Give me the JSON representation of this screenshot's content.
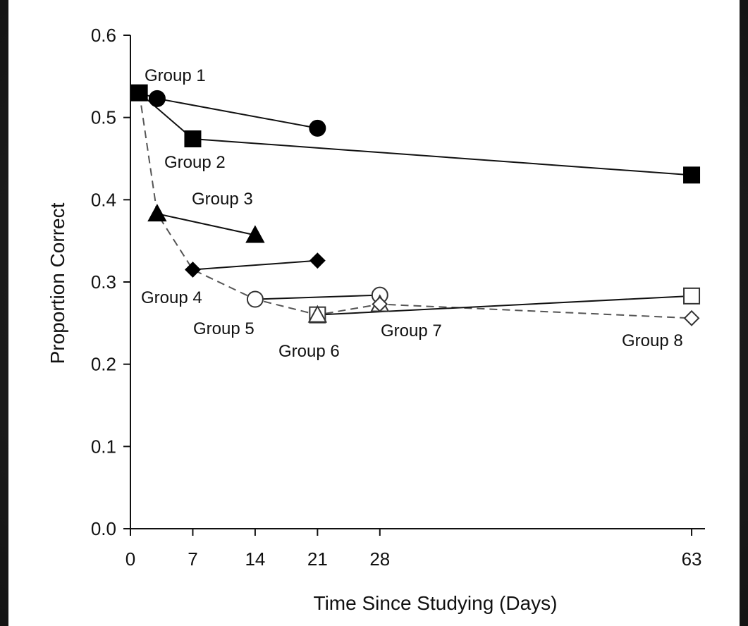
{
  "chart_data": {
    "type": "line",
    "xlabel": "Time Since Studying (Days)",
    "ylabel": "Proportion Correct",
    "xlim": [
      0,
      64.5
    ],
    "ylim": [
      0,
      0.6
    ],
    "x_ticks": [
      "0",
      "7",
      "14",
      "21",
      "28",
      "63"
    ],
    "x_tick_values": [
      0,
      7,
      14,
      21,
      28,
      63
    ],
    "y_ticks": [
      "0.0",
      "0.1",
      "0.2",
      "0.3",
      "0.4",
      "0.5",
      "0.6"
    ],
    "y_tick_values": [
      0,
      0.1,
      0.2,
      0.3,
      0.4,
      0.5,
      0.6
    ],
    "grid": false,
    "legend": "none",
    "series": [
      {
        "name": "Group 1",
        "marker": "filled-circle",
        "line": "solid",
        "points": [
          {
            "x": 1,
            "y": 0.53
          },
          {
            "x": 3,
            "y": 0.523
          },
          {
            "x": 21,
            "y": 0.487
          }
        ]
      },
      {
        "name": "Group 2",
        "marker": "filled-square",
        "line": "solid",
        "points": [
          {
            "x": 1,
            "y": 0.53
          },
          {
            "x": 7,
            "y": 0.474
          },
          {
            "x": 63,
            "y": 0.43
          }
        ]
      },
      {
        "name": "Group 3",
        "marker": "filled-triangle",
        "line": "solid",
        "points": [
          {
            "x": 3,
            "y": 0.383
          },
          {
            "x": 14,
            "y": 0.357
          }
        ]
      },
      {
        "name": "Group 4",
        "marker": "filled-diamond",
        "line": "solid",
        "points": [
          {
            "x": 7,
            "y": 0.315
          },
          {
            "x": 21,
            "y": 0.326
          }
        ]
      },
      {
        "name": "Group 5",
        "marker": "open-circle",
        "line": "solid",
        "points": [
          {
            "x": 14,
            "y": 0.279
          },
          {
            "x": 28,
            "y": 0.284
          }
        ]
      },
      {
        "name": "Group 6",
        "marker": "open-square",
        "line": "solid",
        "points": [
          {
            "x": 21,
            "y": 0.26
          },
          {
            "x": 63,
            "y": 0.283
          }
        ]
      },
      {
        "name": "Group 7",
        "marker": "open-triangle",
        "line": "dashed",
        "points": [
          {
            "x": 21,
            "y": 0.26
          },
          {
            "x": 28,
            "y": 0.273
          }
        ]
      },
      {
        "name": "Group 8",
        "marker": "open-diamond",
        "line": "dashed",
        "points": [
          {
            "x": 28,
            "y": 0.273
          },
          {
            "x": 63,
            "y": 0.256
          }
        ]
      }
    ],
    "forgetting_curve": {
      "line": "dashed",
      "points": [
        {
          "x": 1,
          "y": 0.53
        },
        {
          "x": 3,
          "y": 0.383
        },
        {
          "x": 7,
          "y": 0.315
        },
        {
          "x": 14,
          "y": 0.279
        },
        {
          "x": 21,
          "y": 0.26
        },
        {
          "x": 28,
          "y": 0.273
        },
        {
          "x": 63,
          "y": 0.256
        }
      ]
    },
    "annotations": [
      {
        "text": "Group 1"
      },
      {
        "text": "Group 2"
      },
      {
        "text": "Group 3"
      },
      {
        "text": "Group 4"
      },
      {
        "text": "Group 5"
      },
      {
        "text": "Group 6"
      },
      {
        "text": "Group 7"
      },
      {
        "text": "Group 8"
      }
    ]
  }
}
